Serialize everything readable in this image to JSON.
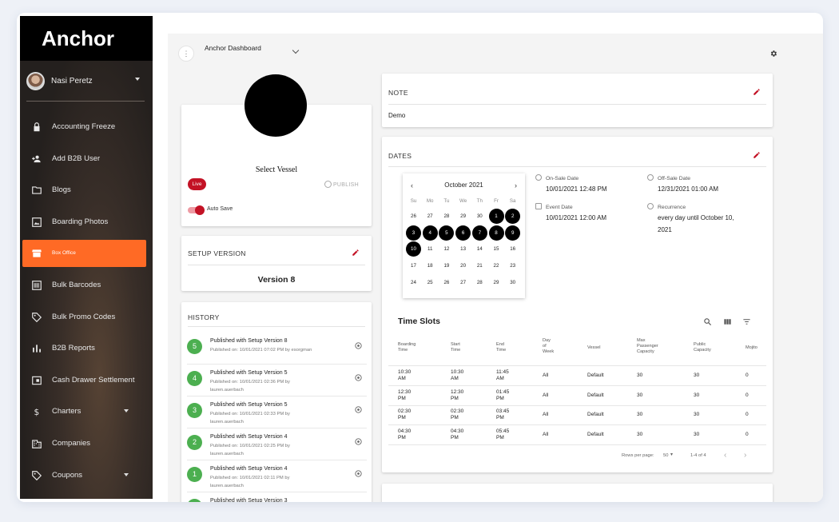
{
  "brand": "Anchor",
  "user": {
    "name": "Nasi Peretz"
  },
  "nav": [
    {
      "label": "Accounting Freeze",
      "icon": "lock-icon",
      "name": "nav-accounting-freeze"
    },
    {
      "label": "Add B2B User",
      "icon": "add-user-icon",
      "name": "nav-add-b2b-user"
    },
    {
      "label": "Blogs",
      "icon": "folder-icon",
      "name": "nav-blogs"
    },
    {
      "label": "Boarding Photos",
      "icon": "image-icon",
      "name": "nav-boarding-photos"
    },
    {
      "label": "Box Office",
      "icon": "storefront-icon",
      "name": "nav-box-office",
      "active": true
    },
    {
      "label": "Bulk Barcodes",
      "icon": "barcode-icon",
      "name": "nav-bulk-barcodes"
    },
    {
      "label": "Bulk Promo Codes",
      "icon": "tag-icon",
      "name": "nav-bulk-promo-codes"
    },
    {
      "label": "B2B Reports",
      "icon": "bar-chart-icon",
      "name": "nav-b2b-reports"
    },
    {
      "label": "Cash Drawer Settlement",
      "icon": "cash-drawer-icon",
      "name": "nav-cash-drawer-settlement"
    },
    {
      "label": "Charters",
      "icon": "dollar-icon",
      "name": "nav-charters",
      "expandable": true
    },
    {
      "label": "Companies",
      "icon": "building-icon",
      "name": "nav-companies"
    },
    {
      "label": "Coupons",
      "icon": "tag-icon",
      "name": "nav-coupons",
      "expandable": true
    }
  ],
  "header": {
    "menu_glyph": "⋮",
    "dashboard_title": "Anchor Dashboard"
  },
  "vessel": {
    "select_label": "Select Vessel",
    "status": "Live",
    "publish_label": "PUBLISH",
    "auto_save_label": "Auto Save"
  },
  "setup_version": {
    "title": "SETUP VERSION",
    "value": "Version 8"
  },
  "history": {
    "title": "HISTORY",
    "items": [
      {
        "badge": "5",
        "title": "Published with Setup Version 8",
        "line1": "Published on: 10/01/2021 07:02 PM by esorgman",
        "line2": ""
      },
      {
        "badge": "4",
        "title": "Published with Setup Version 5",
        "line1": "Published on: 10/01/2021 02:36 PM by",
        "line2": "lauren.auerbach"
      },
      {
        "badge": "3",
        "title": "Published with Setup Version 5",
        "line1": "Published on: 10/01/2021 02:33 PM by",
        "line2": "lauren.auerbach"
      },
      {
        "badge": "2",
        "title": "Published with Setup Version 4",
        "line1": "Published on: 10/01/2021 02:25 PM by",
        "line2": "lauren.auerbach"
      },
      {
        "badge": "1",
        "title": "Published with Setup Version 4",
        "line1": "Published on: 10/01/2021 02:11 PM by",
        "line2": "lauren.auerbach"
      },
      {
        "badge": "★",
        "title": "Published with Setup Version 3",
        "line1": "",
        "line2": ""
      }
    ]
  },
  "note": {
    "title": "NOTE",
    "body": "Demo"
  },
  "dates": {
    "title": "DATES",
    "calendar": {
      "month": "October 2021",
      "weekdays": [
        "Su",
        "Mo",
        "Tu",
        "We",
        "Th",
        "Fr",
        "Sa"
      ],
      "weeks": [
        [
          "26",
          "27",
          "28",
          "29",
          "30",
          "1",
          "2"
        ],
        [
          "3",
          "4",
          "5",
          "6",
          "7",
          "8",
          "9"
        ],
        [
          "10",
          "11",
          "12",
          "13",
          "14",
          "15",
          "16"
        ],
        [
          "17",
          "18",
          "19",
          "20",
          "21",
          "22",
          "23"
        ],
        [
          "24",
          "25",
          "26",
          "27",
          "28",
          "29",
          "30"
        ]
      ],
      "selected": [
        "1",
        "2",
        "3",
        "4",
        "5",
        "6",
        "7",
        "8",
        "9",
        "10"
      ]
    },
    "on_sale_label": "On-Sale Date",
    "on_sale_value": "10/01/2021 12:48 PM",
    "off_sale_label": "Off-Sale Date",
    "off_sale_value": "12/31/2021 01:00 AM",
    "event_label": "Event Date",
    "event_value": "10/01/2021 12:00 AM",
    "recurrence_label": "Recurrence",
    "recurrence_value_1": "every day until October 10,",
    "recurrence_value_2": "2021"
  },
  "time_slots": {
    "title": "Time Slots",
    "columns": [
      [
        "Boarding",
        "Time"
      ],
      [
        "Start",
        "Time"
      ],
      [
        "End",
        "Time"
      ],
      [
        "Day",
        "of",
        "Week"
      ],
      [
        "Vessel"
      ],
      [
        "Max",
        "Passenger",
        "Capacity"
      ],
      [
        "Public",
        "Capacity"
      ],
      [
        "Mojito"
      ]
    ],
    "rows": [
      [
        [
          "10:30",
          "AM"
        ],
        [
          "10:30",
          "AM"
        ],
        [
          "11:45",
          "AM"
        ],
        [
          "All"
        ],
        [
          "Default"
        ],
        [
          "30"
        ],
        [
          "30"
        ],
        [
          "0"
        ]
      ],
      [
        [
          "12:30",
          "PM"
        ],
        [
          "12:30",
          "PM"
        ],
        [
          "01:45",
          "PM"
        ],
        [
          "All"
        ],
        [
          "Default"
        ],
        [
          "30"
        ],
        [
          "30"
        ],
        [
          "0"
        ]
      ],
      [
        [
          "02:30",
          "PM"
        ],
        [
          "02:30",
          "PM"
        ],
        [
          "03:45",
          "PM"
        ],
        [
          "All"
        ],
        [
          "Default"
        ],
        [
          "30"
        ],
        [
          "30"
        ],
        [
          "0"
        ]
      ],
      [
        [
          "04:30",
          "PM"
        ],
        [
          "04:30",
          "PM"
        ],
        [
          "05:45",
          "PM"
        ],
        [
          "All"
        ],
        [
          "Default"
        ],
        [
          "30"
        ],
        [
          "30"
        ],
        [
          "0"
        ]
      ]
    ],
    "rows_per_page_label": "Rows per page:",
    "rows_per_page_value": "50",
    "range": "1-4 of 4"
  },
  "colors": {
    "accent": "#ff6a25",
    "brand_red": "#c31225",
    "success": "#4caf50"
  }
}
